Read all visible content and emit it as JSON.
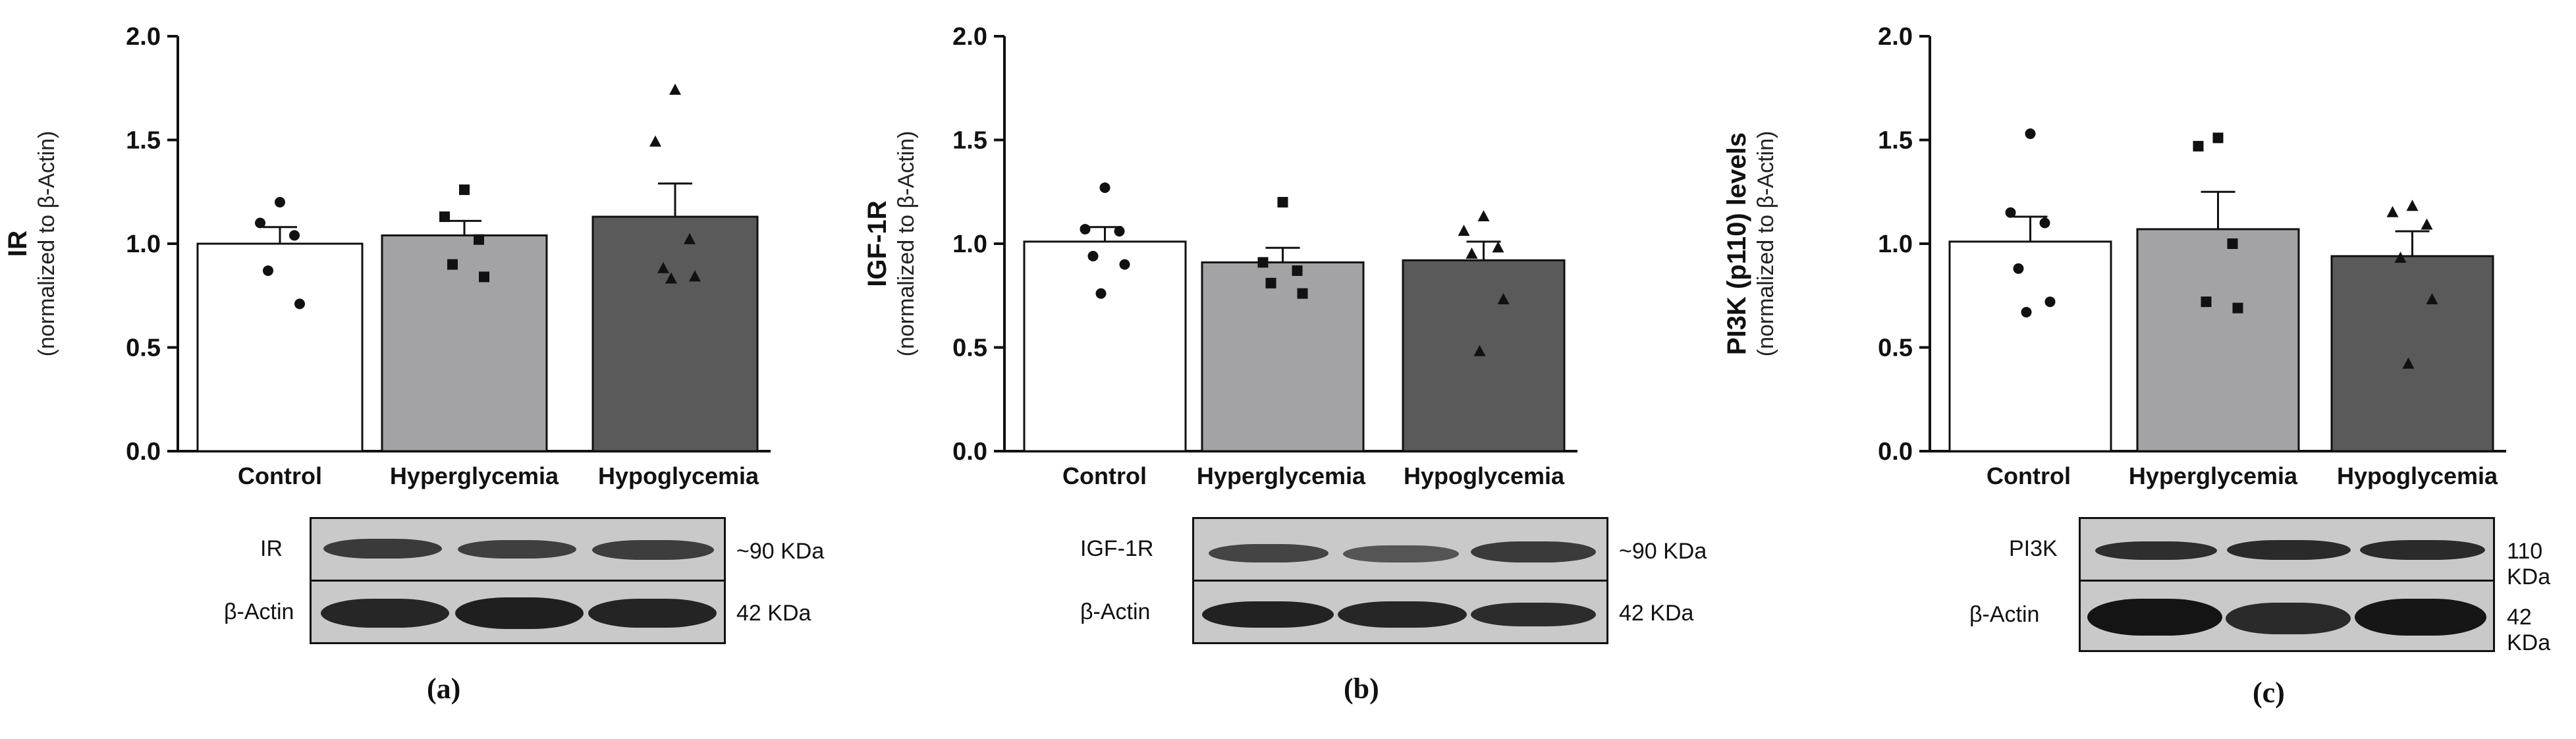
{
  "colors": {
    "control": "#ffffff",
    "hyperglycemia": "#a3a3a6",
    "hypoglycemia": "#5a5a5a",
    "axis": "#111111"
  },
  "panels": [
    {
      "letter": "(a)",
      "ylabel_main": "IR",
      "ylabel_sub": "(normalized to β-Actin)",
      "blot_labels": [
        "IR",
        "β-Actin"
      ],
      "kda": [
        "~90 KDa",
        "42 KDa"
      ]
    },
    {
      "letter": "(b)",
      "ylabel_main": "IGF-1R",
      "ylabel_sub": "(normalized to β-Actin)",
      "blot_labels": [
        "IGF-1R",
        "β-Actin"
      ],
      "kda": [
        "~90 KDa",
        "42 KDa"
      ]
    },
    {
      "letter": "(c)",
      "ylabel_main": "PI3K (p110) levels",
      "ylabel_sub": "(normalized to β-Actin)",
      "blot_labels": [
        "PI3K",
        "β-Actin"
      ],
      "kda": [
        "110 KDa",
        "42 KDa"
      ]
    }
  ],
  "chart_data": [
    {
      "type": "bar",
      "categories": [
        "Control",
        "Hyperglycemia",
        "Hypoglycemia"
      ],
      "ylabel": "IR (normalized to β-Actin)",
      "ylim": [
        0,
        2.0
      ],
      "yticks": [
        "0.0",
        "0.5",
        "1.0",
        "1.5",
        "2.0"
      ],
      "values": [
        1.0,
        1.04,
        1.13
      ],
      "errors": [
        0.08,
        0.07,
        0.16
      ],
      "points": [
        [
          1.2,
          1.1,
          1.04,
          0.87,
          0.71
        ],
        [
          1.26,
          1.13,
          1.02,
          0.9,
          0.84
        ],
        [
          1.74,
          1.49,
          1.02,
          0.88,
          0.84,
          0.83
        ]
      ],
      "markers": [
        "circle",
        "square",
        "triangle"
      ]
    },
    {
      "type": "bar",
      "categories": [
        "Control",
        "Hyperglycemia",
        "Hypoglycemia"
      ],
      "ylabel": "IGF-1R (normalized to β-Actin)",
      "ylim": [
        0,
        2.0
      ],
      "yticks": [
        "0.0",
        "0.5",
        "1.0",
        "1.5",
        "2.0"
      ],
      "values": [
        1.01,
        0.91,
        0.92
      ],
      "errors": [
        0.07,
        0.07,
        0.09
      ],
      "points": [
        [
          1.27,
          1.07,
          1.06,
          0.94,
          0.9,
          0.76
        ],
        [
          1.2,
          0.91,
          0.87,
          0.81,
          0.76
        ],
        [
          1.13,
          1.06,
          0.98,
          0.95,
          0.73,
          0.48
        ]
      ],
      "markers": [
        "circle",
        "square",
        "triangle"
      ]
    },
    {
      "type": "bar",
      "categories": [
        "Control",
        "Hyperglycemia",
        "Hypoglycemia"
      ],
      "ylabel": "PI3K (p110) levels (normalized to β-Actin)",
      "ylim": [
        0,
        2.0
      ],
      "yticks": [
        "0.0",
        "0.5",
        "1.0",
        "1.5",
        "2.0"
      ],
      "values": [
        1.01,
        1.07,
        0.94
      ],
      "errors": [
        0.12,
        0.18,
        0.12
      ],
      "points": [
        [
          1.53,
          1.15,
          1.1,
          0.88,
          0.72,
          0.67
        ],
        [
          1.51,
          1.47,
          1.0,
          0.72,
          0.69
        ],
        [
          1.18,
          1.15,
          1.09,
          0.93,
          0.73,
          0.42
        ]
      ],
      "markers": [
        "circle",
        "square",
        "triangle"
      ]
    }
  ]
}
